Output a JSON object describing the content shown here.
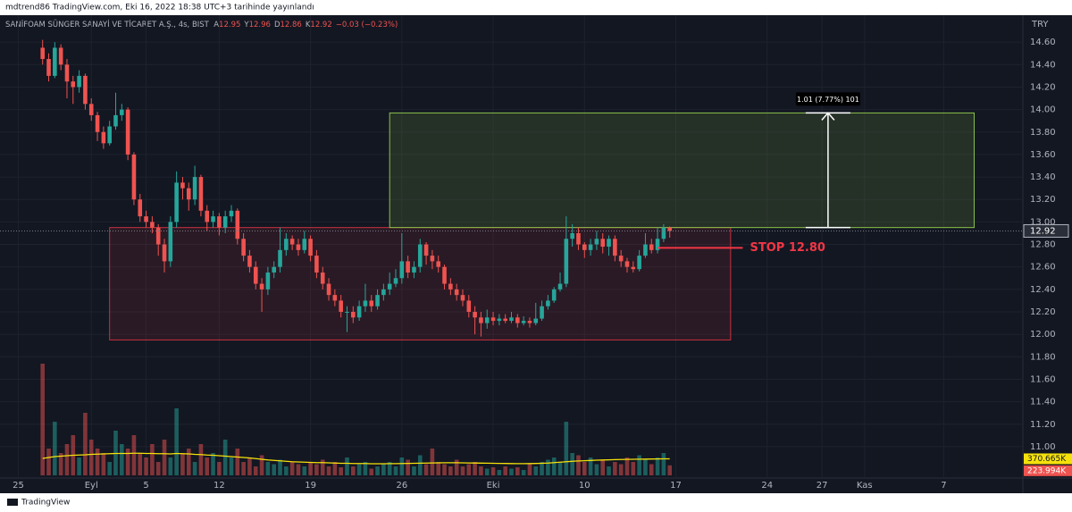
{
  "header": {
    "published": "mdtrend86 TradingView.com, Eki 16, 2022 18:38 UTC+3 tarihinde yayınlandı",
    "symbol": "SANİFOAM SÜNGER SANAYİ VE TİCARET A.Ş., 4s, BIST",
    "ohlc_letters": [
      "A",
      "Y",
      "D",
      "K"
    ],
    "change_label": "−0.03 (−0.23%)",
    "currency": "TRY"
  },
  "footer": {
    "logo": "TradingView"
  },
  "chart_data": {
    "type": "candlestick",
    "open": [
      14.55,
      14.45,
      14.3,
      14.55,
      14.4,
      14.25,
      14.2,
      14.3,
      14.05,
      13.95,
      13.8,
      13.7,
      13.85,
      13.95,
      14.0,
      13.6,
      13.2,
      13.05,
      13.0,
      12.95,
      12.8,
      12.65,
      13.0,
      13.35,
      13.3,
      13.2,
      13.4,
      13.1,
      13.0,
      13.05,
      12.95,
      13.05,
      13.1,
      12.85,
      12.7,
      12.6,
      12.45,
      12.4,
      12.55,
      12.6,
      12.75,
      12.85,
      12.8,
      12.75,
      12.85,
      12.7,
      12.55,
      12.45,
      12.35,
      12.3,
      12.2,
      12.2,
      12.15,
      12.25,
      12.3,
      12.25,
      12.35,
      12.4,
      12.45,
      12.5,
      12.65,
      12.55,
      12.6,
      12.8,
      12.7,
      12.65,
      12.6,
      12.45,
      12.4,
      12.35,
      12.3,
      12.2,
      12.15,
      12.1,
      12.15,
      12.12,
      12.14,
      12.12,
      12.15,
      12.1,
      12.12,
      12.1,
      12.14,
      12.25,
      12.3,
      12.4,
      12.45,
      12.85,
      12.9,
      12.8,
      12.75,
      12.8,
      12.85,
      12.78,
      12.85,
      12.7,
      12.65,
      12.6,
      12.58,
      12.7,
      12.8,
      12.75,
      12.85,
      12.95
    ],
    "high": [
      14.62,
      14.5,
      14.6,
      14.58,
      14.45,
      14.3,
      14.35,
      14.32,
      14.1,
      13.98,
      13.85,
      13.9,
      14.15,
      14.05,
      14.02,
      13.62,
      13.25,
      13.1,
      13.05,
      12.98,
      12.85,
      13.05,
      13.45,
      13.4,
      13.35,
      13.5,
      13.42,
      13.15,
      13.1,
      13.08,
      13.1,
      13.15,
      13.12,
      12.9,
      12.75,
      12.65,
      12.5,
      12.6,
      12.65,
      12.95,
      12.9,
      12.88,
      12.85,
      12.92,
      12.88,
      12.75,
      12.6,
      12.5,
      12.4,
      12.35,
      12.25,
      12.25,
      12.3,
      12.45,
      12.35,
      12.4,
      12.45,
      12.55,
      12.58,
      12.9,
      12.7,
      12.65,
      12.85,
      12.82,
      12.75,
      12.7,
      12.62,
      12.5,
      12.45,
      12.4,
      12.35,
      12.25,
      12.2,
      12.22,
      12.2,
      12.18,
      12.18,
      12.2,
      12.18,
      12.16,
      12.15,
      12.28,
      12.3,
      12.35,
      12.42,
      12.55,
      13.05,
      12.98,
      12.95,
      12.82,
      12.85,
      12.92,
      12.9,
      12.88,
      12.88,
      12.75,
      12.68,
      12.65,
      12.75,
      12.9,
      12.85,
      12.95,
      12.98,
      12.96
    ],
    "low": [
      14.4,
      14.25,
      14.28,
      14.35,
      14.1,
      14.05,
      14.15,
      14.0,
      13.9,
      13.72,
      13.65,
      13.68,
      13.82,
      13.9,
      13.55,
      13.15,
      13.0,
      12.95,
      12.9,
      12.7,
      12.55,
      12.6,
      12.95,
      13.2,
      13.1,
      13.15,
      13.05,
      12.92,
      12.95,
      12.88,
      12.9,
      13.0,
      12.8,
      12.65,
      12.55,
      12.4,
      12.2,
      12.35,
      12.5,
      12.55,
      12.7,
      12.75,
      12.7,
      12.72,
      12.65,
      12.5,
      12.4,
      12.3,
      12.25,
      12.15,
      12.02,
      12.1,
      12.12,
      12.2,
      12.2,
      12.22,
      12.3,
      12.35,
      12.42,
      12.45,
      12.5,
      12.5,
      12.55,
      12.62,
      12.58,
      12.55,
      12.4,
      12.35,
      12.3,
      12.25,
      12.15,
      12.0,
      11.98,
      12.05,
      12.08,
      12.08,
      12.1,
      12.1,
      12.06,
      12.08,
      12.06,
      12.08,
      12.12,
      12.22,
      12.28,
      12.38,
      12.42,
      12.78,
      12.75,
      12.68,
      12.7,
      12.75,
      12.72,
      12.7,
      12.65,
      12.6,
      12.55,
      12.55,
      12.56,
      12.68,
      12.72,
      12.72,
      12.82,
      12.86
    ],
    "close": [
      14.45,
      14.3,
      14.55,
      14.4,
      14.25,
      14.2,
      14.3,
      14.05,
      13.95,
      13.8,
      13.7,
      13.85,
      13.95,
      14.0,
      13.6,
      13.2,
      13.05,
      13.0,
      12.95,
      12.8,
      12.65,
      13.0,
      13.35,
      13.3,
      13.2,
      13.4,
      13.1,
      13.0,
      13.05,
      12.95,
      13.05,
      13.1,
      12.85,
      12.7,
      12.6,
      12.45,
      12.4,
      12.55,
      12.6,
      12.75,
      12.85,
      12.8,
      12.75,
      12.85,
      12.7,
      12.55,
      12.45,
      12.35,
      12.3,
      12.2,
      12.2,
      12.15,
      12.25,
      12.3,
      12.25,
      12.35,
      12.4,
      12.45,
      12.5,
      12.65,
      12.55,
      12.6,
      12.8,
      12.7,
      12.65,
      12.6,
      12.45,
      12.4,
      12.35,
      12.3,
      12.2,
      12.15,
      12.1,
      12.15,
      12.12,
      12.14,
      12.12,
      12.15,
      12.1,
      12.12,
      12.1,
      12.14,
      12.25,
      12.3,
      12.4,
      12.45,
      12.85,
      12.9,
      12.8,
      12.75,
      12.8,
      12.85,
      12.78,
      12.85,
      12.7,
      12.65,
      12.6,
      12.58,
      12.7,
      12.8,
      12.75,
      12.85,
      12.95,
      12.92
    ],
    "volume": [
      2500000,
      600000,
      1200000,
      500000,
      700000,
      900000,
      400000,
      1400000,
      800000,
      600000,
      500000,
      300000,
      1000000,
      700000,
      600000,
      900000,
      500000,
      400000,
      700000,
      300000,
      800000,
      400000,
      1500000,
      500000,
      600000,
      300000,
      700000,
      400000,
      500000,
      300000,
      800000,
      400000,
      600000,
      300000,
      400000,
      200000,
      450000,
      300000,
      250000,
      350000,
      200000,
      300000,
      250000,
      200000,
      300000,
      250000,
      350000,
      200000,
      300000,
      180000,
      400000,
      200000,
      250000,
      300000,
      150000,
      200000,
      250000,
      300000,
      200000,
      400000,
      350000,
      200000,
      450000,
      250000,
      600000,
      300000,
      250000,
      200000,
      350000,
      200000,
      250000,
      300000,
      200000,
      150000,
      180000,
      120000,
      200000,
      150000,
      180000,
      120000,
      250000,
      200000,
      300000,
      350000,
      400000,
      300000,
      1200000,
      500000,
      450000,
      300000,
      400000,
      250000,
      350000,
      200000,
      300000,
      250000,
      400000,
      300000,
      450000,
      350000,
      250000,
      400000,
      500000,
      223994
    ],
    "volume_last_label": "223.994K",
    "volume_ma": [
      380000,
      400000,
      420000,
      430000,
      440000,
      450000,
      455000,
      460000,
      470000,
      475000,
      480000,
      485000,
      490000,
      490000,
      490000,
      495000,
      495000,
      490000,
      490000,
      485000,
      485000,
      480000,
      490000,
      485000,
      480000,
      470000,
      465000,
      455000,
      450000,
      440000,
      430000,
      420000,
      410000,
      400000,
      390000,
      375000,
      360000,
      345000,
      335000,
      325000,
      315000,
      305000,
      300000,
      295000,
      290000,
      285000,
      285000,
      280000,
      275000,
      270000,
      270000,
      265000,
      265000,
      265000,
      260000,
      260000,
      260000,
      262000,
      262000,
      265000,
      268000,
      270000,
      272000,
      275000,
      278000,
      280000,
      282000,
      282000,
      282000,
      280000,
      278000,
      276000,
      274000,
      272000,
      270000,
      268000,
      266000,
      264000,
      262000,
      262000,
      264000,
      266000,
      270000,
      275000,
      285000,
      295000,
      305000,
      315000,
      322000,
      328000,
      334000,
      340000,
      344000,
      348000,
      352000,
      355000,
      358000,
      360000,
      362000,
      364000,
      366000,
      368000,
      369500,
      370665
    ],
    "volume_ma_last_label": "370.665K",
    "up_color": "#26a69a",
    "down_color": "#ef5350",
    "volume_up_color": "rgba(38,166,154,0.5)",
    "volume_down_color": "rgba(239,83,80,0.5)",
    "volume_ma_color": "#f5e10a",
    "xlim": [
      -7,
      161
    ],
    "ylim": [
      10.745,
      14.8
    ],
    "volume_lim": [
      0,
      3000000
    ],
    "xticks": [
      {
        "value": -4,
        "label": "25"
      },
      {
        "value": 8,
        "label": "Eyl"
      },
      {
        "value": 17,
        "label": "5"
      },
      {
        "value": 29,
        "label": "12"
      },
      {
        "value": 44,
        "label": "19"
      },
      {
        "value": 59,
        "label": "26"
      },
      {
        "value": 74,
        "label": "Eki"
      },
      {
        "value": 89,
        "label": "10"
      },
      {
        "value": 104,
        "label": "17"
      },
      {
        "value": 119,
        "label": "24"
      },
      {
        "value": 128,
        "label": "27"
      },
      {
        "value": 135,
        "label": "Kas"
      },
      {
        "value": 148,
        "label": "7"
      }
    ],
    "yticks": [
      {
        "value": 11,
        "label": "11.00"
      },
      {
        "value": 11.2,
        "label": "11.20"
      },
      {
        "value": 11.4,
        "label": "11.40"
      },
      {
        "value": 11.6,
        "label": "11.60"
      },
      {
        "value": 11.8,
        "label": "11.80"
      },
      {
        "value": 12,
        "label": "12.00"
      },
      {
        "value": 12.2,
        "label": "12.20"
      },
      {
        "value": 12.4,
        "label": "12.40"
      },
      {
        "value": 12.6,
        "label": "12.60"
      },
      {
        "value": 12.8,
        "label": "12.80"
      },
      {
        "value": 13,
        "label": "13.00"
      },
      {
        "value": 13.2,
        "label": "13.20"
      },
      {
        "value": 13.4,
        "label": "13.40"
      },
      {
        "value": 13.6,
        "label": "13.60"
      },
      {
        "value": 13.8,
        "label": "13.80"
      },
      {
        "value": 14,
        "label": "14.00"
      },
      {
        "value": 14.2,
        "label": "14.20"
      },
      {
        "value": 14.4,
        "label": "14.40"
      },
      {
        "value": 14.6,
        "label": "14.60"
      }
    ],
    "grid": true,
    "range_box": {
      "x": [
        11,
        113
      ],
      "y": [
        11.95,
        12.95
      ],
      "color": "#f23645"
    },
    "target_box": {
      "x": [
        57,
        153
      ],
      "y": [
        12.95,
        13.97
      ],
      "color": "#8bc34a"
    },
    "measure": {
      "x": 129,
      "y": [
        12.95,
        13.97
      ],
      "label": "1.01 (7.77%) 101"
    },
    "stop": {
      "x": [
        101,
        115
      ],
      "y": 12.77,
      "label": "STOP 12.80",
      "color": "#f23645"
    }
  }
}
